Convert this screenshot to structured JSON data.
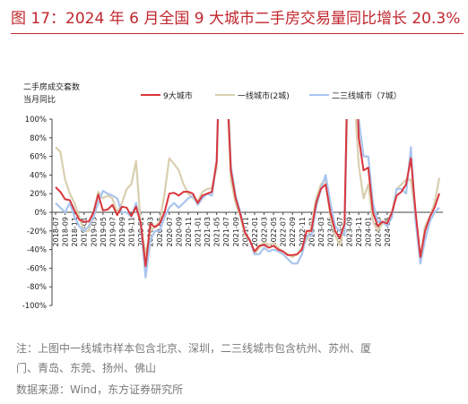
{
  "title": "图 17：2024 年 6 月全国 9 大城市二手房交易量同比增长 20.3%",
  "notes": {
    "line1": "注：上图中一线城市样本包含北京、深圳，二三线城市包含杭州、苏州、厦",
    "line2": "门、青岛、东莞、扬州、佛山",
    "source": "数据来源：Wind，东方证券研究所"
  },
  "colors": {
    "title": "#c0262d",
    "s1": "#d9363c",
    "s2": "#d9cfb0",
    "s3": "#a9c5ef"
  },
  "chart_data": {
    "type": "line",
    "ylabel_lines": [
      "二手房成交套数",
      "当月同比"
    ],
    "ylim": [
      -100,
      100
    ],
    "yticks": [
      "100%",
      "80%",
      "60%",
      "40%",
      "20%",
      "0%",
      "-20%",
      "-40%",
      "-60%",
      "-80%",
      "-100%"
    ],
    "xtick_labels": [
      "2018-07",
      "2018-09",
      "2018-11",
      "2019-01",
      "2019-03",
      "2019-05",
      "2019-07",
      "2019-09",
      "2019-11",
      "2020-01",
      "2020-03",
      "2020-05",
      "2020-07",
      "2020-09",
      "2020-11",
      "2021-01",
      "2021-03",
      "2021-05",
      "2021-07",
      "2021-09",
      "2021-11",
      "2022-01",
      "2022-03",
      "2022-05",
      "2022-07",
      "2022-09",
      "2022-11",
      "2023-01",
      "2023-03",
      "2023-05",
      "2023-07",
      "2023-09",
      "2023-11",
      "2024-01",
      "2024-03",
      "2024-05"
    ],
    "legend_position": "top",
    "series": [
      {
        "name": "9大城市",
        "values": [
          27,
          22,
          14,
          13,
          2,
          -8,
          -10,
          -10,
          0,
          19,
          2,
          3,
          8,
          -3,
          6,
          5,
          -4,
          6,
          -12,
          -58,
          -12,
          -16,
          -12,
          0,
          20,
          21,
          18,
          22,
          22,
          20,
          10,
          18,
          20,
          22,
          55,
          240,
          160,
          45,
          15,
          -2,
          -22,
          -30,
          -42,
          -36,
          -35,
          -38,
          -36,
          -40,
          -42,
          -46,
          -46,
          -45,
          -40,
          -20,
          -20,
          10,
          25,
          30,
          0,
          -20,
          -28,
          -12,
          250,
          200,
          80,
          45,
          48,
          0,
          -15,
          -10,
          -12,
          0,
          18,
          22,
          30,
          58,
          0,
          -48,
          -20,
          -5,
          5,
          20.3
        ]
      },
      {
        "name": "一线城市(2城)",
        "values": [
          70,
          65,
          35,
          20,
          10,
          -5,
          -20,
          -20,
          0,
          22,
          15,
          18,
          15,
          0,
          10,
          25,
          30,
          55,
          -15,
          -45,
          -20,
          -15,
          -10,
          20,
          58,
          52,
          45,
          30,
          20,
          15,
          12,
          22,
          25,
          26,
          48,
          240,
          150,
          35,
          10,
          -5,
          -25,
          -30,
          -45,
          -38,
          -32,
          -35,
          -33,
          -38,
          -42,
          -45,
          -48,
          -45,
          -38,
          -30,
          -15,
          15,
          30,
          35,
          -5,
          -25,
          -35,
          -15,
          200,
          130,
          50,
          15,
          30,
          -10,
          -20,
          -12,
          -10,
          0,
          25,
          30,
          35,
          35,
          -5,
          -50,
          -15,
          -5,
          10,
          37
        ]
      },
      {
        "name": "二三线城市（7城）",
        "values": [
          10,
          5,
          0,
          10,
          -5,
          -15,
          -20,
          -15,
          -5,
          10,
          23,
          20,
          18,
          15,
          0,
          0,
          -5,
          10,
          -15,
          -70,
          -30,
          -20,
          -20,
          -5,
          5,
          10,
          5,
          10,
          15,
          18,
          8,
          15,
          20,
          18,
          55,
          250,
          170,
          50,
          18,
          0,
          -22,
          -30,
          -45,
          -45,
          -38,
          -42,
          -40,
          -42,
          -45,
          -50,
          -55,
          -55,
          -45,
          -25,
          -25,
          5,
          25,
          40,
          10,
          -15,
          -20,
          -25,
          260,
          220,
          100,
          60,
          60,
          10,
          -10,
          -10,
          -15,
          -5,
          25,
          25,
          20,
          70,
          -10,
          -55,
          -30,
          -10,
          0,
          5
        ]
      }
    ]
  }
}
